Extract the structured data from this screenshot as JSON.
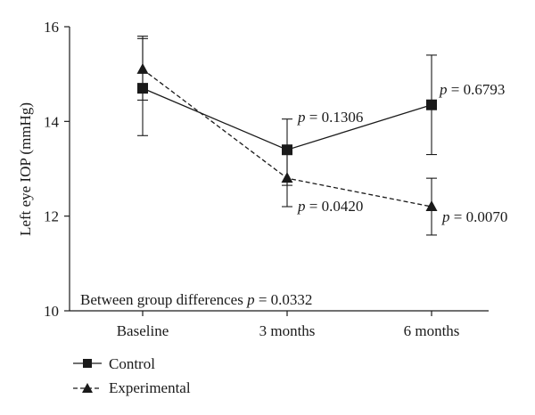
{
  "chart_data": {
    "type": "line",
    "title": "",
    "xlabel": "",
    "ylabel": "Left eye IOP (mmHg)",
    "categories": [
      "Baseline",
      "3 months",
      "6 months"
    ],
    "ylim": [
      10,
      16
    ],
    "yticks": [
      10,
      12,
      14,
      16
    ],
    "grid": false,
    "legend_position": "bottom-left",
    "series": [
      {
        "name": "Control",
        "marker": "square",
        "line_style": "solid",
        "values": [
          14.7,
          13.4,
          14.35
        ],
        "error_low": [
          13.7,
          12.65,
          13.3
        ],
        "error_high": [
          15.75,
          14.05,
          15.4
        ]
      },
      {
        "name": "Experimental",
        "marker": "triangle",
        "line_style": "dashed",
        "values": [
          15.1,
          12.8,
          12.2
        ],
        "error_low": [
          14.45,
          12.2,
          11.6
        ],
        "error_high": [
          15.8,
          13.4,
          12.8
        ]
      }
    ],
    "annotations": [
      {
        "name": "control-3m",
        "p_label": "p",
        "text": " = 0.1306"
      },
      {
        "name": "control-6m",
        "p_label": "p",
        "text": " = 0.6793"
      },
      {
        "name": "experimental-3m",
        "p_label": "p",
        "text": " = 0.0420"
      },
      {
        "name": "experimental-6m",
        "p_label": "p",
        "text": " = 0.0070"
      }
    ],
    "group_note": {
      "prefix": "Between group differences ",
      "p_label": "p",
      "suffix": " = 0.0332"
    }
  }
}
